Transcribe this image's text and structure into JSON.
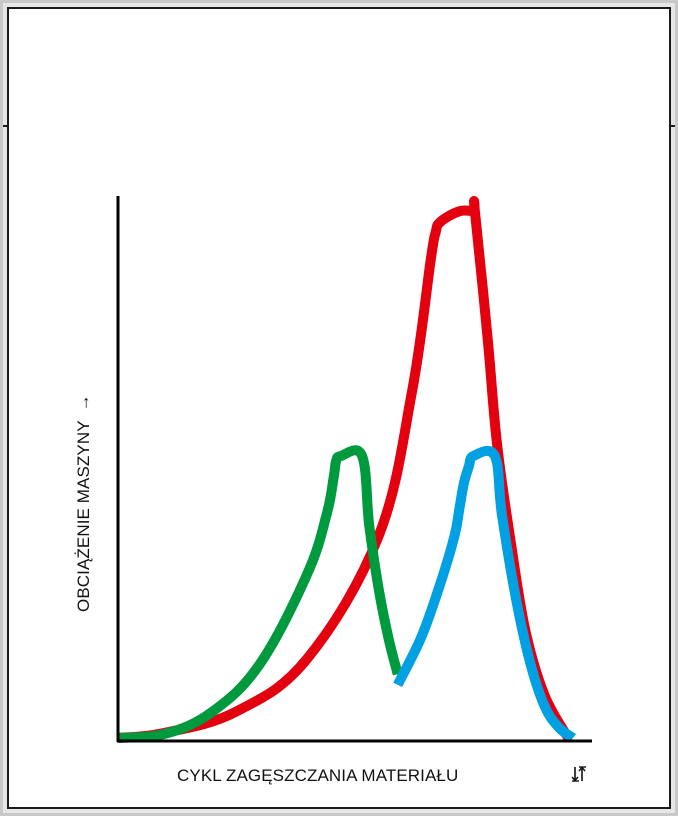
{
  "chart_data": {
    "type": "line",
    "title": "",
    "xlabel": "CYKL ZAGĘSZCZANIA MATERIAŁU",
    "xlabel_icon": "compaction-icon",
    "ylabel": "OBCIĄŻENIE MASZYNY",
    "ylabel_arrow": "→",
    "xlim": [
      0,
      100
    ],
    "ylim": [
      0,
      100
    ],
    "grid": false,
    "legend": "none",
    "series": [
      {
        "color": "#e3000f",
        "points": [
          [
            0,
            0
          ],
          [
            10,
            1
          ],
          [
            25,
            5
          ],
          [
            40,
            15
          ],
          [
            55,
            38
          ],
          [
            62,
            65
          ],
          [
            66,
            90
          ],
          [
            67,
            95
          ],
          [
            68,
            97
          ],
          [
            72,
            99
          ],
          [
            75,
            99
          ],
          [
            75.3,
            99
          ],
          [
            78,
            75
          ],
          [
            80,
            55
          ],
          [
            83,
            36
          ],
          [
            86,
            20
          ],
          [
            90,
            8
          ],
          [
            95,
            0
          ]
        ]
      },
      {
        "color": "#009a3e",
        "points": [
          [
            0,
            0
          ],
          [
            10,
            0.8
          ],
          [
            20,
            5
          ],
          [
            30,
            14
          ],
          [
            40,
            31
          ],
          [
            44,
            42
          ],
          [
            45.5,
            49
          ],
          [
            46,
            52
          ],
          [
            47,
            53
          ],
          [
            51.5,
            53
          ],
          [
            53,
            40
          ],
          [
            55,
            28
          ],
          [
            57,
            19
          ],
          [
            59,
            12
          ]
        ]
      },
      {
        "color": "#00a0e3",
        "points": [
          [
            59,
            10
          ],
          [
            64,
            19
          ],
          [
            68,
            29
          ],
          [
            71,
            38
          ],
          [
            72,
            43
          ],
          [
            73,
            48
          ],
          [
            74,
            51
          ],
          [
            75,
            53
          ],
          [
            79.5,
            53
          ],
          [
            81,
            42
          ],
          [
            84,
            26
          ],
          [
            87,
            14
          ],
          [
            90,
            6
          ],
          [
            93,
            2
          ],
          [
            96,
            0
          ]
        ]
      }
    ]
  }
}
